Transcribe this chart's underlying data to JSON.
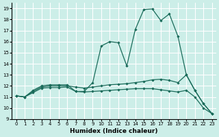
{
  "xlabel": "Humidex (Indice chaleur)",
  "bg_color": "#cceee8",
  "grid_color": "#ffffff",
  "line_color": "#1a6b5a",
  "xlim": [
    -0.5,
    23.5
  ],
  "ylim": [
    9,
    19.5
  ],
  "yticks": [
    9,
    10,
    11,
    12,
    13,
    14,
    15,
    16,
    17,
    18,
    19
  ],
  "xticks": [
    0,
    1,
    2,
    3,
    4,
    5,
    6,
    7,
    8,
    9,
    10,
    11,
    12,
    13,
    14,
    15,
    16,
    17,
    18,
    19,
    20,
    21,
    22,
    23
  ],
  "series1_x": [
    0,
    1,
    2,
    3,
    4,
    5,
    6,
    7,
    8,
    9,
    10,
    11,
    12,
    13,
    14,
    15,
    16,
    17,
    18,
    19,
    20,
    21,
    22,
    23
  ],
  "series1_y": [
    11.1,
    11.0,
    11.6,
    12.0,
    12.1,
    12.1,
    12.1,
    11.5,
    11.5,
    12.3,
    15.6,
    16.0,
    15.9,
    13.8,
    17.1,
    18.9,
    18.95,
    17.9,
    18.5,
    16.5,
    13.0,
    11.6,
    10.4,
    9.5
  ],
  "series2_x": [
    0,
    1,
    2,
    3,
    4,
    5,
    6,
    7,
    8,
    9,
    10,
    11,
    12,
    13,
    14,
    15,
    16,
    17,
    18,
    19,
    20,
    21,
    22,
    23
  ],
  "series2_y": [
    11.1,
    11.0,
    11.5,
    11.9,
    12.0,
    12.0,
    12.0,
    11.9,
    11.8,
    11.9,
    12.0,
    12.1,
    12.15,
    12.2,
    12.3,
    12.4,
    12.55,
    12.6,
    12.5,
    12.3,
    13.0,
    11.6,
    10.4,
    9.5
  ],
  "series3_x": [
    0,
    1,
    2,
    3,
    4,
    5,
    6,
    7,
    8,
    9,
    10,
    11,
    12,
    13,
    14,
    15,
    16,
    17,
    18,
    19,
    20,
    21,
    22,
    23
  ],
  "series3_y": [
    11.1,
    11.0,
    11.4,
    11.8,
    11.85,
    11.85,
    11.9,
    11.5,
    11.45,
    11.5,
    11.55,
    11.6,
    11.65,
    11.7,
    11.75,
    11.75,
    11.75,
    11.65,
    11.55,
    11.45,
    11.6,
    11.0,
    10.0,
    9.5
  ]
}
